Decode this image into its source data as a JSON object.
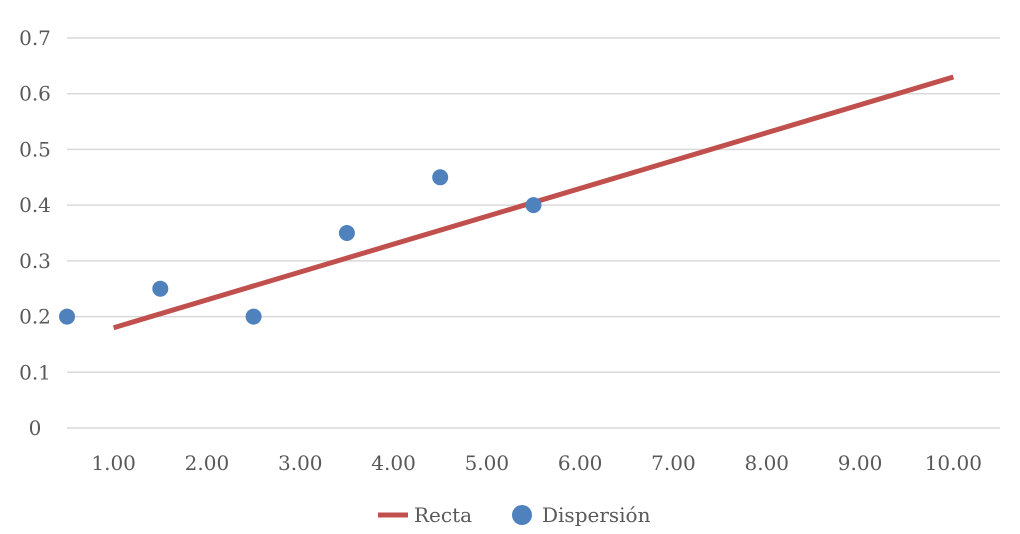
{
  "chart_data": {
    "type": "scatter",
    "x_ticks": [
      "1.00",
      "2.00",
      "3.00",
      "4.00",
      "5.00",
      "6.00",
      "7.00",
      "8.00",
      "9.00",
      "10.00"
    ],
    "y_ticks": [
      "0",
      "0.1",
      "0.2",
      "0.3",
      "0.4",
      "0.5",
      "0.6",
      "0.7"
    ],
    "xlim": [
      0.5,
      10.5
    ],
    "ylim": [
      0,
      0.7
    ],
    "grid": "horizontal",
    "legend_position": "bottom",
    "series": [
      {
        "name": "Recta",
        "kind": "line",
        "color": "#c0504d",
        "points": [
          {
            "x": 1.0,
            "y": 0.18
          },
          {
            "x": 10.0,
            "y": 0.63
          }
        ]
      },
      {
        "name": "Dispersión",
        "kind": "scatter",
        "color": "#4f81bd",
        "points": [
          {
            "x": 0.5,
            "y": 0.2
          },
          {
            "x": 1.5,
            "y": 0.25
          },
          {
            "x": 2.5,
            "y": 0.2
          },
          {
            "x": 3.5,
            "y": 0.35
          },
          {
            "x": 4.5,
            "y": 0.45
          },
          {
            "x": 5.5,
            "y": 0.4
          }
        ]
      }
    ]
  }
}
